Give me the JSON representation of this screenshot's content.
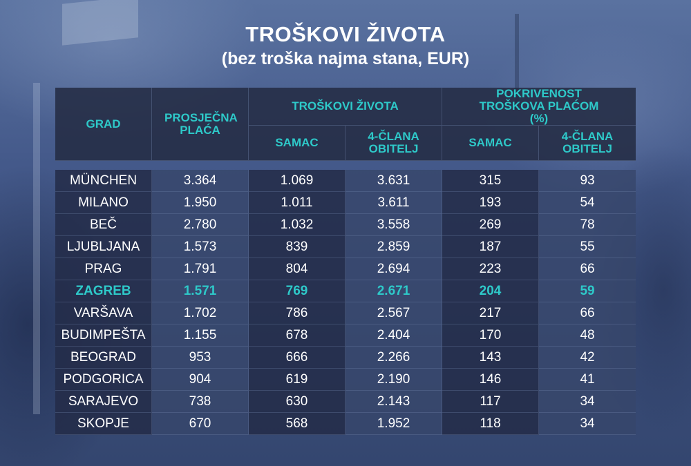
{
  "title": "TROŠKOVI ŽIVOTA",
  "subtitle": "(bez troška najma stana, EUR)",
  "header": {
    "grad": "GRAD",
    "prosjecna_placa": "PROSJEČNA PLAĆA",
    "troskovi_zivota": "TROŠKOVI ŽIVOTA",
    "pokrivenost": "POKRIVENOST TROŠKOVA PLAĆOM (%)",
    "samac": "SAMAC",
    "obitelj": "4-ČLANA OBITELJ"
  },
  "colors": {
    "accent": "#2ec9c9",
    "text": "#ffffff"
  },
  "chart_data": {
    "type": "table",
    "title": "TROŠKOVI ŽIVOTA",
    "subtitle": "(bez troška najma stana, EUR)",
    "columns": [
      "GRAD",
      "PROSJEČNA PLAĆA",
      "TROŠKOVI ŽIVOTA SAMAC",
      "TROŠKOVI ŽIVOTA 4-ČLANA OBITELJ",
      "POKRIVENOST SAMAC",
      "POKRIVENOST 4-ČLANA OBITELJ"
    ],
    "highlighted_row": "ZAGREB",
    "rows": [
      {
        "city": "MÜNCHEN",
        "placa": "3.364",
        "samac": "1.069",
        "obitelj": "3.631",
        "pok_samac": "315",
        "pok_obitelj": "93"
      },
      {
        "city": "MILANO",
        "placa": "1.950",
        "samac": "1.011",
        "obitelj": "3.611",
        "pok_samac": "193",
        "pok_obitelj": "54"
      },
      {
        "city": "BEČ",
        "placa": "2.780",
        "samac": "1.032",
        "obitelj": "3.558",
        "pok_samac": "269",
        "pok_obitelj": "78"
      },
      {
        "city": "LJUBLJANA",
        "placa": "1.573",
        "samac": "839",
        "obitelj": "2.859",
        "pok_samac": "187",
        "pok_obitelj": "55"
      },
      {
        "city": "PRAG",
        "placa": "1.791",
        "samac": "804",
        "obitelj": "2.694",
        "pok_samac": "223",
        "pok_obitelj": "66"
      },
      {
        "city": "ZAGREB",
        "placa": "1.571",
        "samac": "769",
        "obitelj": "2.671",
        "pok_samac": "204",
        "pok_obitelj": "59"
      },
      {
        "city": "VARŠAVA",
        "placa": "1.702",
        "samac": "786",
        "obitelj": "2.567",
        "pok_samac": "217",
        "pok_obitelj": "66"
      },
      {
        "city": "BUDIMPEŠTA",
        "placa": "1.155",
        "samac": "678",
        "obitelj": "2.404",
        "pok_samac": "170",
        "pok_obitelj": "48"
      },
      {
        "city": "BEOGRAD",
        "placa": "953",
        "samac": "666",
        "obitelj": "2.266",
        "pok_samac": "143",
        "pok_obitelj": "42"
      },
      {
        "city": "PODGORICA",
        "placa": "904",
        "samac": "619",
        "obitelj": "2.190",
        "pok_samac": "146",
        "pok_obitelj": "41"
      },
      {
        "city": "SARAJEVO",
        "placa": "738",
        "samac": "630",
        "obitelj": "2.143",
        "pok_samac": "117",
        "pok_obitelj": "34"
      },
      {
        "city": "SKOPJE",
        "placa": "670",
        "samac": "568",
        "obitelj": "1.952",
        "pok_samac": "118",
        "pok_obitelj": "34"
      }
    ]
  }
}
